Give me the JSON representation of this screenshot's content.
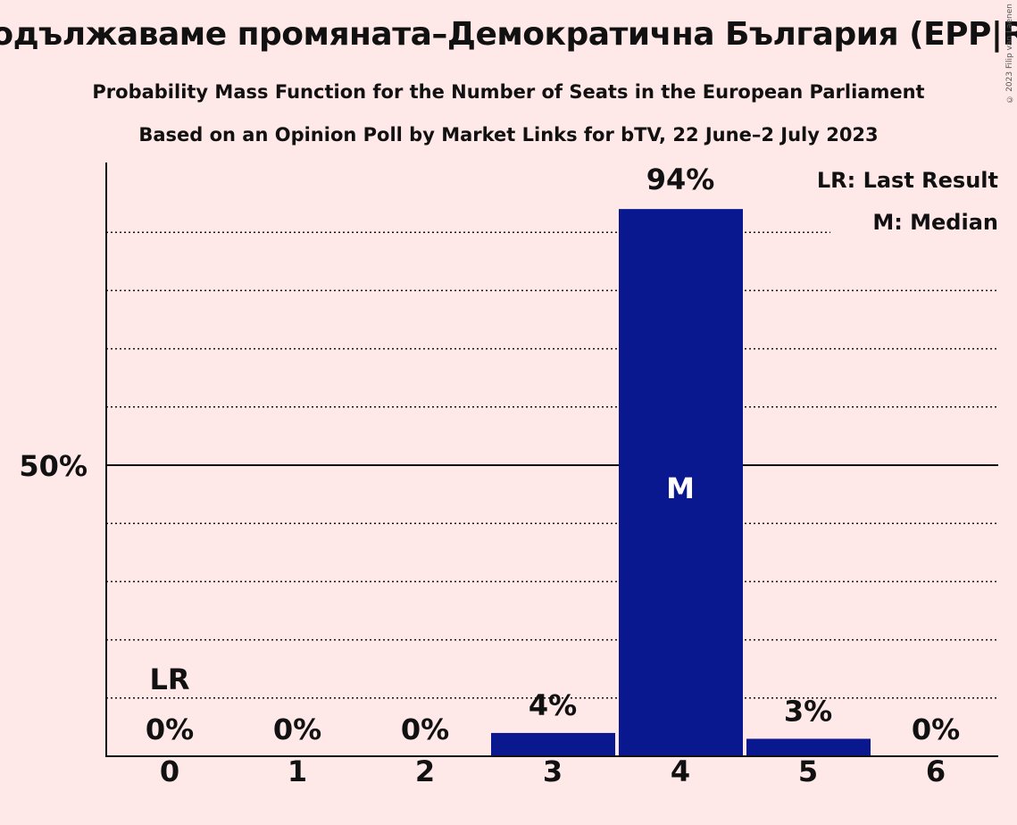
{
  "title": "родължаваме промяната–Демократична България (EPP|RE",
  "subtitle": "Probability Mass Function for the Number of Seats in the European Parliament",
  "subtitle2": "Based on an Opinion Poll by Market Links for bTV, 22 June–2 July 2023",
  "copyright": "© 2023 Filip van Laenen",
  "colors": {
    "background": "#FFE8E8",
    "bar": "#0A1890",
    "text": "#111111"
  },
  "chart_data": {
    "type": "bar",
    "categories": [
      "0",
      "1",
      "2",
      "3",
      "4",
      "5",
      "6"
    ],
    "values": [
      0,
      0,
      0,
      4,
      94,
      3,
      0
    ],
    "value_labels": [
      "0%",
      "0%",
      "0%",
      "4%",
      "94%",
      "3%",
      "0%"
    ],
    "ylim": [
      0,
      100
    ],
    "y_tick_label": "50%",
    "y_tick_value": 50,
    "gridlines": [
      10,
      20,
      30,
      40,
      60,
      70,
      80,
      90
    ],
    "last_result_index": 0,
    "last_result_label": "LR",
    "median_index": 4,
    "median_label": "M",
    "legend": [
      "LR: Last Result",
      "M: Median"
    ],
    "legend_position": "top-right"
  }
}
